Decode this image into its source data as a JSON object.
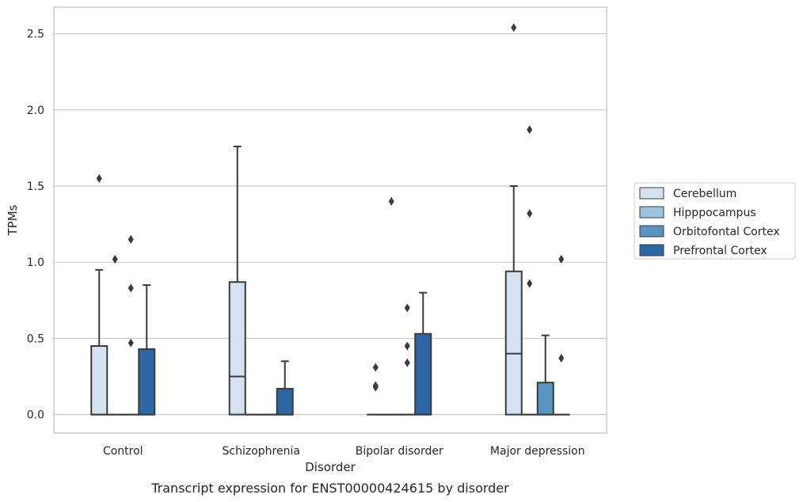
{
  "chart_data": {
    "type": "box",
    "caption": "Transcript expression for ENST00000424615 by disorder",
    "xlabel": "Disorder",
    "ylabel": "TPMs",
    "ylim": [
      -0.12,
      2.67
    ],
    "yticks": [
      0.0,
      0.5,
      1.0,
      1.5,
      2.0,
      2.5
    ],
    "ytick_labels": [
      "0.0",
      "0.5",
      "1.0",
      "1.5",
      "2.0",
      "2.5"
    ],
    "grid": "horizontal",
    "legend_position": "right",
    "categories": [
      "Control",
      "Schizophrenia",
      "Bipolar disorder",
      "Major depression"
    ],
    "series": [
      {
        "name": "Cerebellum",
        "color": "#d4e2f1",
        "boxes": [
          {
            "q1": 0.0,
            "median": 0.0,
            "q3": 0.45,
            "whisker_low": 0.0,
            "whisker_high": 0.95,
            "outliers": [
              1.55
            ]
          },
          {
            "q1": 0.0,
            "median": 0.25,
            "q3": 0.87,
            "whisker_low": 0.0,
            "whisker_high": 1.76,
            "outliers": []
          },
          {
            "q1": 0.0,
            "median": 0.0,
            "q3": 0.0,
            "whisker_low": 0.0,
            "whisker_high": 0.0,
            "outliers": [
              0.31,
              0.19,
              0.18
            ]
          },
          {
            "q1": 0.0,
            "median": 0.4,
            "q3": 0.94,
            "whisker_low": 0.0,
            "whisker_high": 1.5,
            "outliers": [
              2.54
            ]
          }
        ]
      },
      {
        "name": "Hipppocampus",
        "color": "#9dc4df",
        "boxes": [
          {
            "q1": 0.0,
            "median": 0.0,
            "q3": 0.0,
            "whisker_low": 0.0,
            "whisker_high": 0.0,
            "outliers": [
              1.02
            ]
          },
          {
            "q1": 0.0,
            "median": 0.0,
            "q3": 0.0,
            "whisker_low": 0.0,
            "whisker_high": 0.0,
            "outliers": []
          },
          {
            "q1": 0.0,
            "median": 0.0,
            "q3": 0.0,
            "whisker_low": 0.0,
            "whisker_high": 0.0,
            "outliers": [
              1.4
            ]
          },
          {
            "q1": 0.0,
            "median": 0.0,
            "q3": 0.0,
            "whisker_low": 0.0,
            "whisker_high": 0.0,
            "outliers": [
              1.87,
              1.32,
              0.86
            ]
          }
        ]
      },
      {
        "name": "Orbitofontal Cortex",
        "color": "#5895c2",
        "boxes": [
          {
            "q1": 0.0,
            "median": 0.0,
            "q3": 0.0,
            "whisker_low": 0.0,
            "whisker_high": 0.0,
            "outliers": [
              1.15,
              0.83,
              0.47
            ]
          },
          {
            "q1": 0.0,
            "median": 0.0,
            "q3": 0.0,
            "whisker_low": 0.0,
            "whisker_high": 0.0,
            "outliers": []
          },
          {
            "q1": 0.0,
            "median": 0.0,
            "q3": 0.0,
            "whisker_low": 0.0,
            "whisker_high": 0.0,
            "outliers": [
              0.7,
              0.45,
              0.34
            ]
          },
          {
            "q1": 0.0,
            "median": 0.0,
            "q3": 0.21,
            "whisker_low": 0.0,
            "whisker_high": 0.52,
            "outliers": []
          }
        ]
      },
      {
        "name": "Prefrontal Cortex",
        "color": "#2c68a6",
        "boxes": [
          {
            "q1": 0.0,
            "median": 0.0,
            "q3": 0.43,
            "whisker_low": 0.0,
            "whisker_high": 0.85,
            "outliers": []
          },
          {
            "q1": 0.0,
            "median": 0.0,
            "q3": 0.17,
            "whisker_low": 0.0,
            "whisker_high": 0.35,
            "outliers": []
          },
          {
            "q1": 0.0,
            "median": 0.0,
            "q3": 0.53,
            "whisker_low": 0.0,
            "whisker_high": 0.8,
            "outliers": []
          },
          {
            "q1": 0.0,
            "median": 0.0,
            "q3": 0.0,
            "whisker_low": 0.0,
            "whisker_high": 0.0,
            "outliers": [
              1.02,
              0.37
            ]
          }
        ]
      }
    ]
  }
}
